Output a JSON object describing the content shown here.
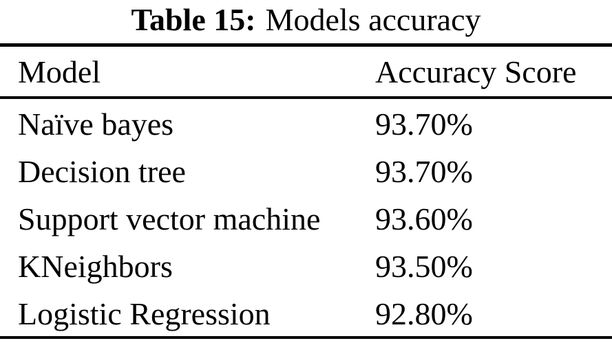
{
  "colors": {
    "background": "#ffffff",
    "text": "#000000",
    "rule": "#000000"
  },
  "caption": {
    "label": "Table 15:",
    "title": "Models accuracy"
  },
  "table": {
    "columns": {
      "model": "Model",
      "accuracy": "Accuracy Score"
    },
    "rows": [
      {
        "model": "Naïve bayes",
        "accuracy": "93.70%"
      },
      {
        "model": "Decision tree",
        "accuracy": "93.70%"
      },
      {
        "model": "Support vector machine",
        "accuracy": "93.60%"
      },
      {
        "model": "KNeighbors",
        "accuracy": "93.50%"
      },
      {
        "model": "Logistic Regression",
        "accuracy": "92.80%"
      }
    ]
  },
  "chart_data": {
    "type": "table",
    "title": "Table 15: Models accuracy",
    "categories": [
      "Naïve bayes",
      "Decision tree",
      "Support vector machine",
      "KNeighbors",
      "Logistic Regression"
    ],
    "values": [
      93.7,
      93.7,
      93.6,
      93.5,
      92.8
    ],
    "xlabel": "Model",
    "ylabel": "Accuracy Score"
  }
}
